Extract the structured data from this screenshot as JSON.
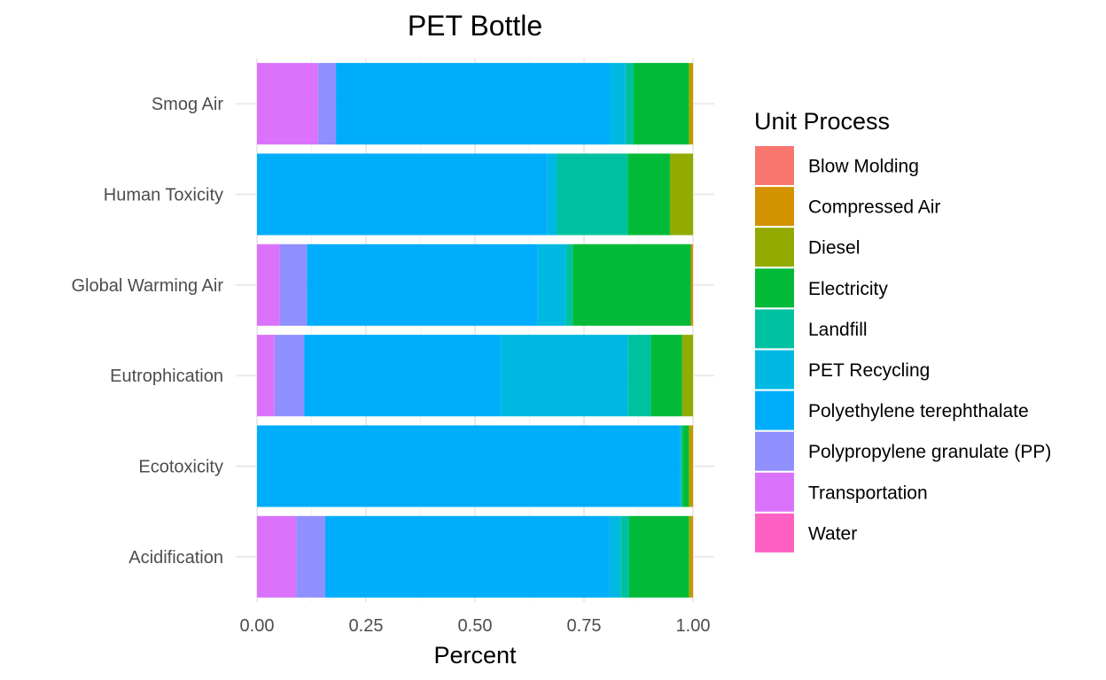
{
  "chart_data": {
    "type": "bar",
    "orientation": "horizontal",
    "stacked": true,
    "title": "PET Bottle",
    "xlabel": "Percent",
    "ylabel": "",
    "xlim": [
      0,
      1
    ],
    "x_ticks": [
      "0.00",
      "0.25",
      "0.50",
      "0.75",
      "1.00"
    ],
    "grid": true,
    "legend_position": "right",
    "legend_title": "Unit Process",
    "categories": [
      "Smog Air",
      "Human Toxicity",
      "Global Warming Air",
      "Eutrophication",
      "Ecotoxicity",
      "Acidification"
    ],
    "series": [
      {
        "name": "Blow Molding",
        "color": "#F8766D",
        "values": [
          0,
          0,
          0,
          0,
          0,
          0
        ]
      },
      {
        "name": "Compressed Air",
        "color": "#D39200",
        "values": [
          0.005,
          0,
          0.005,
          0,
          0.005,
          0.005
        ]
      },
      {
        "name": "Diesel",
        "color": "#93AA00",
        "values": [
          0.005,
          0.053,
          0,
          0.025,
          0.005,
          0.005
        ]
      },
      {
        "name": "Electricity",
        "color": "#00BA38",
        "values": [
          0.127,
          0.097,
          0.27,
          0.072,
          0.014,
          0.137
        ]
      },
      {
        "name": "Landfill",
        "color": "#00C19F",
        "values": [
          0.018,
          0.162,
          0.016,
          0.053,
          0.005,
          0.02
        ]
      },
      {
        "name": "PET Recycling",
        "color": "#00B9E3",
        "values": [
          0.034,
          0.022,
          0.064,
          0.293,
          0,
          0.025
        ]
      },
      {
        "name": "Polyethylene terephthalate",
        "color": "#00ADFA",
        "values": [
          0.63,
          0.666,
          0.528,
          0.449,
          0.971,
          0.655
        ]
      },
      {
        "name": "Polypropylene granulate (PP)",
        "color": "#8F8FFF",
        "values": [
          0.041,
          0,
          0.062,
          0.068,
          0,
          0.067
        ]
      },
      {
        "name": "Transportation",
        "color": "#DB72FB",
        "values": [
          0.14,
          0,
          0.052,
          0.04,
          0,
          0.09
        ]
      },
      {
        "name": "Water",
        "color": "#FF61C3",
        "values": [
          0,
          0,
          0,
          0,
          0,
          0
        ]
      }
    ]
  }
}
